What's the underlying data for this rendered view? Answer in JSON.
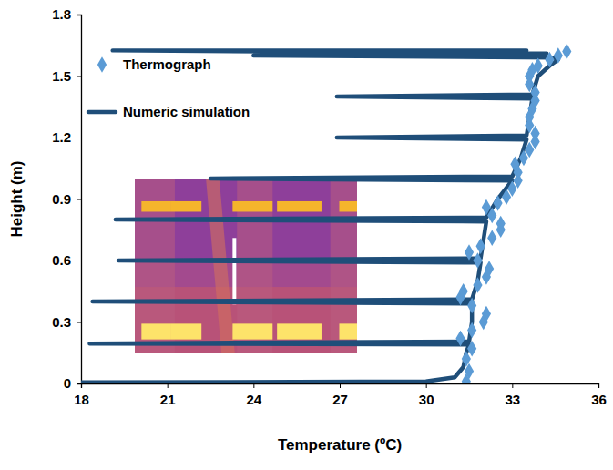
{
  "chart_data": {
    "type": "scatter",
    "x_label": "Temperature (ºC)",
    "y_label": "Height (m)",
    "xlim": [
      18,
      36
    ],
    "xticks": [
      18,
      21,
      24,
      27,
      30,
      33,
      36
    ],
    "ylim": [
      0,
      1.8
    ],
    "yticks": [
      0,
      0.3,
      0.6,
      0.9,
      1.2,
      1.5,
      1.8
    ],
    "grid": false,
    "legend": "top-left",
    "series": [
      {
        "name": "Thermograph",
        "type": "scatter",
        "marker": "diamond",
        "color": "#5b9bd5",
        "x": [
          31.4,
          31.5,
          31.4,
          31.6,
          31.2,
          31.6,
          32.0,
          32.1,
          31.6,
          31.2,
          31.3,
          31.8,
          32.1,
          32.2,
          31.8,
          31.5,
          31.9,
          32.3,
          32.6,
          32.6,
          32.3,
          32.1,
          32.5,
          32.8,
          33.0,
          33.2,
          33.2,
          33.1,
          33.4,
          33.6,
          33.8,
          33.8,
          33.6,
          33.6,
          33.7,
          33.8,
          33.8,
          33.6,
          33.6,
          33.7,
          33.9,
          34.3,
          34.6,
          34.9
        ],
        "values": [
          0.01,
          0.06,
          0.12,
          0.17,
          0.22,
          0.26,
          0.3,
          0.34,
          0.38,
          0.42,
          0.45,
          0.48,
          0.52,
          0.56,
          0.6,
          0.64,
          0.67,
          0.71,
          0.75,
          0.78,
          0.82,
          0.86,
          0.88,
          0.91,
          0.95,
          0.99,
          1.03,
          1.07,
          1.1,
          1.14,
          1.18,
          1.22,
          1.26,
          1.3,
          1.34,
          1.38,
          1.42,
          1.46,
          1.5,
          1.53,
          1.55,
          1.58,
          1.6,
          1.62
        ]
      },
      {
        "name": "Numeric simulation",
        "type": "line",
        "line_style": "solid",
        "color": "#1f4e79",
        "x": [
          18.0,
          30.0,
          31.0,
          31.3,
          31.4,
          31.5,
          18.3,
          31.5,
          31.6,
          31.6,
          18.4,
          31.6,
          31.8,
          31.9,
          19.3,
          31.9,
          32.0,
          32.1,
          19.2,
          32.1,
          32.5,
          33.0,
          22.5,
          33.0,
          33.3,
          33.5,
          26.9,
          33.5,
          33.6,
          33.7,
          26.9,
          33.7,
          33.9,
          34.3,
          34.6,
          34.4,
          24.0,
          34.2,
          19.1,
          33.5
        ],
        "values": [
          0.005,
          0.01,
          0.03,
          0.08,
          0.15,
          0.19,
          0.195,
          0.205,
          0.3,
          0.39,
          0.4,
          0.41,
          0.5,
          0.59,
          0.6,
          0.61,
          0.7,
          0.79,
          0.8,
          0.81,
          0.9,
          0.99,
          1.0,
          1.01,
          1.1,
          1.19,
          1.2,
          1.21,
          1.3,
          1.39,
          1.4,
          1.41,
          1.5,
          1.55,
          1.58,
          1.59,
          1.6,
          1.61,
          1.625,
          1.625
        ]
      }
    ]
  }
}
